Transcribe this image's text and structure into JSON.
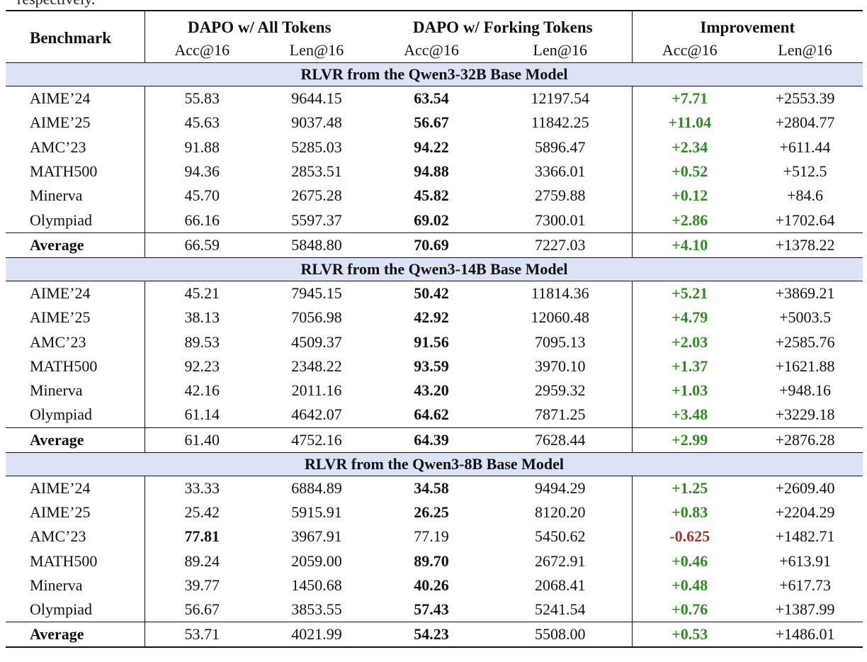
{
  "caption_fragment": "respectively.",
  "header": {
    "benchmark": "Benchmark",
    "groups": [
      "DAPO w/ All Tokens",
      "DAPO w/ Forking Tokens",
      "Improvement"
    ],
    "subcols": [
      "Acc@16",
      "Len@16",
      "Acc@16",
      "Len@16",
      "Acc@16",
      "Len@16"
    ]
  },
  "sections": [
    {
      "title": "RLVR from the Qwen3-32B Base Model",
      "rows": [
        {
          "bench": "AIME’24",
          "a_acc": "55.83",
          "a_len": "9644.15",
          "f_acc": "63.54",
          "f_len": "12197.54",
          "i_acc": "+7.71",
          "i_len": "+2553.39",
          "bold": "f",
          "sign": "pos"
        },
        {
          "bench": "AIME’25",
          "a_acc": "45.63",
          "a_len": "9037.48",
          "f_acc": "56.67",
          "f_len": "11842.25",
          "i_acc": "+11.04",
          "i_len": "+2804.77",
          "bold": "f",
          "sign": "pos"
        },
        {
          "bench": "AMC’23",
          "a_acc": "91.88",
          "a_len": "5285.03",
          "f_acc": "94.22",
          "f_len": "5896.47",
          "i_acc": "+2.34",
          "i_len": "+611.44",
          "bold": "f",
          "sign": "pos"
        },
        {
          "bench": "MATH500",
          "a_acc": "94.36",
          "a_len": "2853.51",
          "f_acc": "94.88",
          "f_len": "3366.01",
          "i_acc": "+0.52",
          "i_len": "+512.5",
          "bold": "f",
          "sign": "pos"
        },
        {
          "bench": "Minerva",
          "a_acc": "45.70",
          "a_len": "2675.28",
          "f_acc": "45.82",
          "f_len": "2759.88",
          "i_acc": "+0.12",
          "i_len": "+84.6",
          "bold": "f",
          "sign": "pos"
        },
        {
          "bench": "Olympiad",
          "a_acc": "66.16",
          "a_len": "5597.37",
          "f_acc": "69.02",
          "f_len": "7300.01",
          "i_acc": "+2.86",
          "i_len": "+1702.64",
          "bold": "f",
          "sign": "pos"
        }
      ],
      "average": {
        "bench": "Average",
        "a_acc": "66.59",
        "a_len": "5848.80",
        "f_acc": "70.69",
        "f_len": "7227.03",
        "i_acc": "+4.10",
        "i_len": "+1378.22",
        "bold": "f",
        "sign": "pos"
      }
    },
    {
      "title": "RLVR from the Qwen3-14B Base Model",
      "rows": [
        {
          "bench": "AIME’24",
          "a_acc": "45.21",
          "a_len": "7945.15",
          "f_acc": "50.42",
          "f_len": "11814.36",
          "i_acc": "+5.21",
          "i_len": "+3869.21",
          "bold": "f",
          "sign": "pos"
        },
        {
          "bench": "AIME’25",
          "a_acc": "38.13",
          "a_len": "7056.98",
          "f_acc": "42.92",
          "f_len": "12060.48",
          "i_acc": "+4.79",
          "i_len": "+5003.5",
          "bold": "f",
          "sign": "pos"
        },
        {
          "bench": "AMC’23",
          "a_acc": "89.53",
          "a_len": "4509.37",
          "f_acc": "91.56",
          "f_len": "7095.13",
          "i_acc": "+2.03",
          "i_len": "+2585.76",
          "bold": "f",
          "sign": "pos"
        },
        {
          "bench": "MATH500",
          "a_acc": "92.23",
          "a_len": "2348.22",
          "f_acc": "93.59",
          "f_len": "3970.10",
          "i_acc": "+1.37",
          "i_len": "+1621.88",
          "bold": "f",
          "sign": "pos"
        },
        {
          "bench": "Minerva",
          "a_acc": "42.16",
          "a_len": "2011.16",
          "f_acc": "43.20",
          "f_len": "2959.32",
          "i_acc": "+1.03",
          "i_len": "+948.16",
          "bold": "f",
          "sign": "pos"
        },
        {
          "bench": "Olympiad",
          "a_acc": "61.14",
          "a_len": "4642.07",
          "f_acc": "64.62",
          "f_len": "7871.25",
          "i_acc": "+3.48",
          "i_len": "+3229.18",
          "bold": "f",
          "sign": "pos"
        }
      ],
      "average": {
        "bench": "Average",
        "a_acc": "61.40",
        "a_len": "4752.16",
        "f_acc": "64.39",
        "f_len": "7628.44",
        "i_acc": "+2.99",
        "i_len": "+2876.28",
        "bold": "f",
        "sign": "pos"
      }
    },
    {
      "title": "RLVR from the Qwen3-8B Base Model",
      "rows": [
        {
          "bench": "AIME’24",
          "a_acc": "33.33",
          "a_len": "6884.89",
          "f_acc": "34.58",
          "f_len": "9494.29",
          "i_acc": "+1.25",
          "i_len": "+2609.40",
          "bold": "f",
          "sign": "pos"
        },
        {
          "bench": "AIME’25",
          "a_acc": "25.42",
          "a_len": "5915.91",
          "f_acc": "26.25",
          "f_len": "8120.20",
          "i_acc": "+0.83",
          "i_len": "+2204.29",
          "bold": "f",
          "sign": "pos"
        },
        {
          "bench": "AMC’23",
          "a_acc": "77.81",
          "a_len": "3967.91",
          "f_acc": "77.19",
          "f_len": "5450.62",
          "i_acc": "-0.625",
          "i_len": "+1482.71",
          "bold": "a",
          "sign": "neg"
        },
        {
          "bench": "MATH500",
          "a_acc": "89.24",
          "a_len": "2059.00",
          "f_acc": "89.70",
          "f_len": "2672.91",
          "i_acc": "+0.46",
          "i_len": "+613.91",
          "bold": "f",
          "sign": "pos"
        },
        {
          "bench": "Minerva",
          "a_acc": "39.77",
          "a_len": "1450.68",
          "f_acc": "40.26",
          "f_len": "2068.41",
          "i_acc": "+0.48",
          "i_len": "+617.73",
          "bold": "f",
          "sign": "pos"
        },
        {
          "bench": "Olympiad",
          "a_acc": "56.67",
          "a_len": "3853.55",
          "f_acc": "57.43",
          "f_len": "5241.54",
          "i_acc": "+0.76",
          "i_len": "+1387.99",
          "bold": "f",
          "sign": "pos"
        }
      ],
      "average": {
        "bench": "Average",
        "a_acc": "53.71",
        "a_len": "4021.99",
        "f_acc": "54.23",
        "f_len": "5508.00",
        "i_acc": "+0.53",
        "i_len": "+1486.01",
        "bold": "f",
        "sign": "pos"
      }
    }
  ],
  "colors": {
    "section_bg": "#dde3f6",
    "positive": "#2e8b1f",
    "negative": "#b0302a"
  }
}
